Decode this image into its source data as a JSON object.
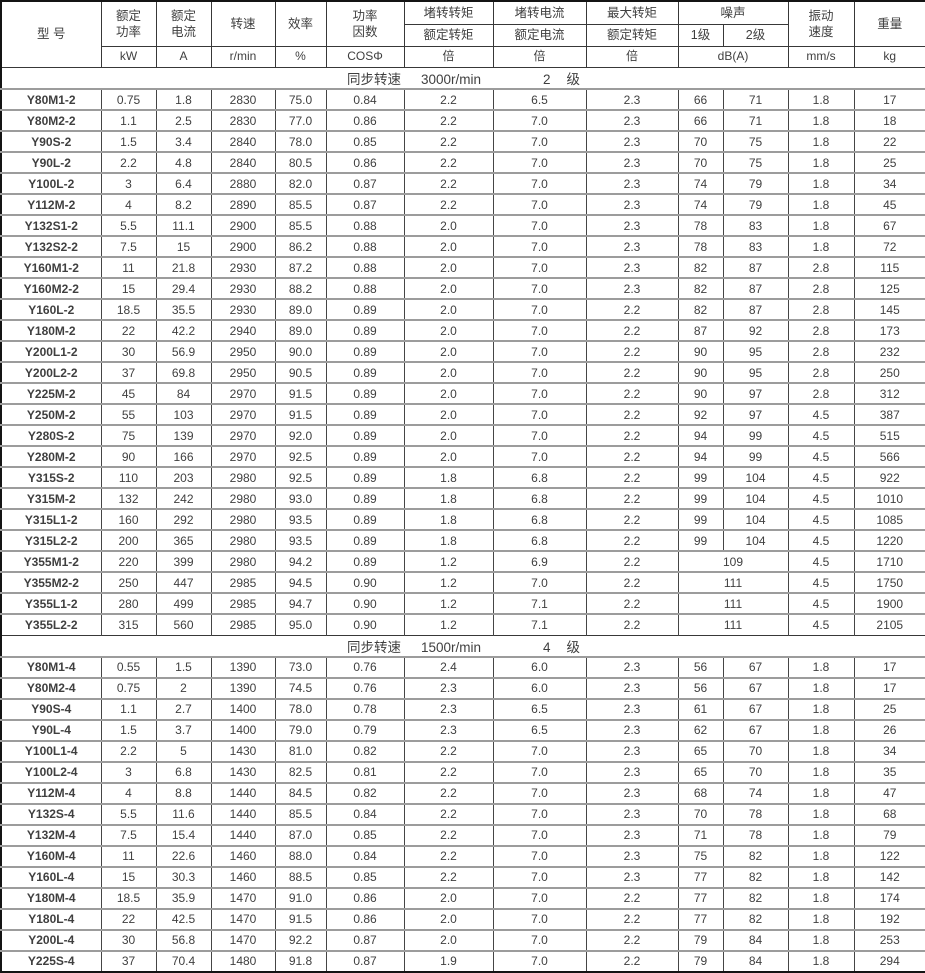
{
  "colors": {
    "text": "#3f3f3f",
    "grid": "#454545",
    "row_line": "#9c9c9c",
    "outer": "#141414",
    "header_line": "#383838",
    "background": "#ffffff"
  },
  "head": {
    "model": "型    号",
    "rated_power": "额定\n功率",
    "rated_current": "额定\n电流",
    "speed": "转速",
    "efficiency": "效率",
    "power_factor": "功率\n因数",
    "lrt_num": "堵转转矩",
    "lrt_den": "额定转矩",
    "lrc_num": "堵转电流",
    "lrc_den": "额定电流",
    "maxt_num": "最大转矩",
    "maxt_den": "额定转矩",
    "noise": "噪声",
    "noise_l1": "1级",
    "noise_l2": "2级",
    "vibration": "振动\n速度",
    "weight": "重量",
    "units": {
      "power": "kW",
      "current": "A",
      "speed": "r/min",
      "efficiency": "%",
      "power_factor": "COSΦ",
      "ratio": "倍",
      "noise": "dB(A)",
      "vibration": "mm/s",
      "weight": "kg"
    }
  },
  "sections": [
    {
      "label": "同步转速",
      "speed": "3000r/min",
      "pole_count": "2",
      "pole_label": "级",
      "rows": [
        [
          "Y80M1-2",
          "0.75",
          "1.8",
          "2830",
          "75.0",
          "0.84",
          "2.2",
          "6.5",
          "2.3",
          "66",
          "71",
          "1.8",
          "17"
        ],
        [
          "Y80M2-2",
          "1.1",
          "2.5",
          "2830",
          "77.0",
          "0.86",
          "2.2",
          "7.0",
          "2.3",
          "66",
          "71",
          "1.8",
          "18"
        ],
        [
          "Y90S-2",
          "1.5",
          "3.4",
          "2840",
          "78.0",
          "0.85",
          "2.2",
          "7.0",
          "2.3",
          "70",
          "75",
          "1.8",
          "22"
        ],
        [
          "Y90L-2",
          "2.2",
          "4.8",
          "2840",
          "80.5",
          "0.86",
          "2.2",
          "7.0",
          "2.3",
          "70",
          "75",
          "1.8",
          "25"
        ],
        [
          "Y100L-2",
          "3",
          "6.4",
          "2880",
          "82.0",
          "0.87",
          "2.2",
          "7.0",
          "2.3",
          "74",
          "79",
          "1.8",
          "34"
        ],
        [
          "Y112M-2",
          "4",
          "8.2",
          "2890",
          "85.5",
          "0.87",
          "2.2",
          "7.0",
          "2.3",
          "74",
          "79",
          "1.8",
          "45"
        ],
        [
          "Y132S1-2",
          "5.5",
          "11.1",
          "2900",
          "85.5",
          "0.88",
          "2.0",
          "7.0",
          "2.3",
          "78",
          "83",
          "1.8",
          "67"
        ],
        [
          "Y132S2-2",
          "7.5",
          "15",
          "2900",
          "86.2",
          "0.88",
          "2.0",
          "7.0",
          "2.3",
          "78",
          "83",
          "1.8",
          "72"
        ],
        [
          "Y160M1-2",
          "11",
          "21.8",
          "2930",
          "87.2",
          "0.88",
          "2.0",
          "7.0",
          "2.3",
          "82",
          "87",
          "2.8",
          "115"
        ],
        [
          "Y160M2-2",
          "15",
          "29.4",
          "2930",
          "88.2",
          "0.88",
          "2.0",
          "7.0",
          "2.3",
          "82",
          "87",
          "2.8",
          "125"
        ],
        [
          "Y160L-2",
          "18.5",
          "35.5",
          "2930",
          "89.0",
          "0.89",
          "2.0",
          "7.0",
          "2.2",
          "82",
          "87",
          "2.8",
          "145"
        ],
        [
          "Y180M-2",
          "22",
          "42.2",
          "2940",
          "89.0",
          "0.89",
          "2.0",
          "7.0",
          "2.2",
          "87",
          "92",
          "2.8",
          "173"
        ],
        [
          "Y200L1-2",
          "30",
          "56.9",
          "2950",
          "90.0",
          "0.89",
          "2.0",
          "7.0",
          "2.2",
          "90",
          "95",
          "2.8",
          "232"
        ],
        [
          "Y200L2-2",
          "37",
          "69.8",
          "2950",
          "90.5",
          "0.89",
          "2.0",
          "7.0",
          "2.2",
          "90",
          "95",
          "2.8",
          "250"
        ],
        [
          "Y225M-2",
          "45",
          "84",
          "2970",
          "91.5",
          "0.89",
          "2.0",
          "7.0",
          "2.2",
          "90",
          "97",
          "2.8",
          "312"
        ],
        [
          "Y250M-2",
          "55",
          "103",
          "2970",
          "91.5",
          "0.89",
          "2.0",
          "7.0",
          "2.2",
          "92",
          "97",
          "4.5",
          "387"
        ],
        [
          "Y280S-2",
          "75",
          "139",
          "2970",
          "92.0",
          "0.89",
          "2.0",
          "7.0",
          "2.2",
          "94",
          "99",
          "4.5",
          "515"
        ],
        [
          "Y280M-2",
          "90",
          "166",
          "2970",
          "92.5",
          "0.89",
          "2.0",
          "7.0",
          "2.2",
          "94",
          "99",
          "4.5",
          "566"
        ],
        [
          "Y315S-2",
          "110",
          "203",
          "2980",
          "92.5",
          "0.89",
          "1.8",
          "6.8",
          "2.2",
          "99",
          "104",
          "4.5",
          "922"
        ],
        [
          "Y315M-2",
          "132",
          "242",
          "2980",
          "93.0",
          "0.89",
          "1.8",
          "6.8",
          "2.2",
          "99",
          "104",
          "4.5",
          "1010"
        ],
        [
          "Y315L1-2",
          "160",
          "292",
          "2980",
          "93.5",
          "0.89",
          "1.8",
          "6.8",
          "2.2",
          "99",
          "104",
          "4.5",
          "1085"
        ],
        [
          "Y315L2-2",
          "200",
          "365",
          "2980",
          "93.5",
          "0.89",
          "1.8",
          "6.8",
          "2.2",
          "99",
          "104",
          "4.5",
          "1220"
        ],
        [
          "Y355M1-2",
          "220",
          "399",
          "2980",
          "94.2",
          "0.89",
          "1.2",
          "6.9",
          "2.2",
          "109",
          "4.5",
          "1710"
        ],
        [
          "Y355M2-2",
          "250",
          "447",
          "2985",
          "94.5",
          "0.90",
          "1.2",
          "7.0",
          "2.2",
          "111",
          "4.5",
          "1750"
        ],
        [
          "Y355L1-2",
          "280",
          "499",
          "2985",
          "94.7",
          "0.90",
          "1.2",
          "7.1",
          "2.2",
          "111",
          "4.5",
          "1900"
        ],
        [
          "Y355L2-2",
          "315",
          "560",
          "2985",
          "95.0",
          "0.90",
          "1.2",
          "7.1",
          "2.2",
          "111",
          "4.5",
          "2105"
        ]
      ]
    },
    {
      "label": "同步转速",
      "speed": "1500r/min",
      "pole_count": "4",
      "pole_label": "级",
      "rows": [
        [
          "Y80M1-4",
          "0.55",
          "1.5",
          "1390",
          "73.0",
          "0.76",
          "2.4",
          "6.0",
          "2.3",
          "56",
          "67",
          "1.8",
          "17"
        ],
        [
          "Y80M2-4",
          "0.75",
          "2",
          "1390",
          "74.5",
          "0.76",
          "2.3",
          "6.0",
          "2.3",
          "56",
          "67",
          "1.8",
          "17"
        ],
        [
          "Y90S-4",
          "1.1",
          "2.7",
          "1400",
          "78.0",
          "0.78",
          "2.3",
          "6.5",
          "2.3",
          "61",
          "67",
          "1.8",
          "25"
        ],
        [
          "Y90L-4",
          "1.5",
          "3.7",
          "1400",
          "79.0",
          "0.79",
          "2.3",
          "6.5",
          "2.3",
          "62",
          "67",
          "1.8",
          "26"
        ],
        [
          "Y100L1-4",
          "2.2",
          "5",
          "1430",
          "81.0",
          "0.82",
          "2.2",
          "7.0",
          "2.3",
          "65",
          "70",
          "1.8",
          "34"
        ],
        [
          "Y100L2-4",
          "3",
          "6.8",
          "1430",
          "82.5",
          "0.81",
          "2.2",
          "7.0",
          "2.3",
          "65",
          "70",
          "1.8",
          "35"
        ],
        [
          "Y112M-4",
          "4",
          "8.8",
          "1440",
          "84.5",
          "0.82",
          "2.2",
          "7.0",
          "2.3",
          "68",
          "74",
          "1.8",
          "47"
        ],
        [
          "Y132S-4",
          "5.5",
          "11.6",
          "1440",
          "85.5",
          "0.84",
          "2.2",
          "7.0",
          "2.3",
          "70",
          "78",
          "1.8",
          "68"
        ],
        [
          "Y132M-4",
          "7.5",
          "15.4",
          "1440",
          "87.0",
          "0.85",
          "2.2",
          "7.0",
          "2.3",
          "71",
          "78",
          "1.8",
          "79"
        ],
        [
          "Y160M-4",
          "11",
          "22.6",
          "1460",
          "88.0",
          "0.84",
          "2.2",
          "7.0",
          "2.3",
          "75",
          "82",
          "1.8",
          "122"
        ],
        [
          "Y160L-4",
          "15",
          "30.3",
          "1460",
          "88.5",
          "0.85",
          "2.2",
          "7.0",
          "2.3",
          "77",
          "82",
          "1.8",
          "142"
        ],
        [
          "Y180M-4",
          "18.5",
          "35.9",
          "1470",
          "91.0",
          "0.86",
          "2.0",
          "7.0",
          "2.2",
          "77",
          "82",
          "1.8",
          "174"
        ],
        [
          "Y180L-4",
          "22",
          "42.5",
          "1470",
          "91.5",
          "0.86",
          "2.0",
          "7.0",
          "2.2",
          "77",
          "82",
          "1.8",
          "192"
        ],
        [
          "Y200L-4",
          "30",
          "56.8",
          "1470",
          "92.2",
          "0.87",
          "2.0",
          "7.0",
          "2.2",
          "79",
          "84",
          "1.8",
          "253"
        ],
        [
          "Y225S-4",
          "37",
          "70.4",
          "1480",
          "91.8",
          "0.87",
          "1.9",
          "7.0",
          "2.2",
          "79",
          "84",
          "1.8",
          "294"
        ]
      ]
    }
  ]
}
